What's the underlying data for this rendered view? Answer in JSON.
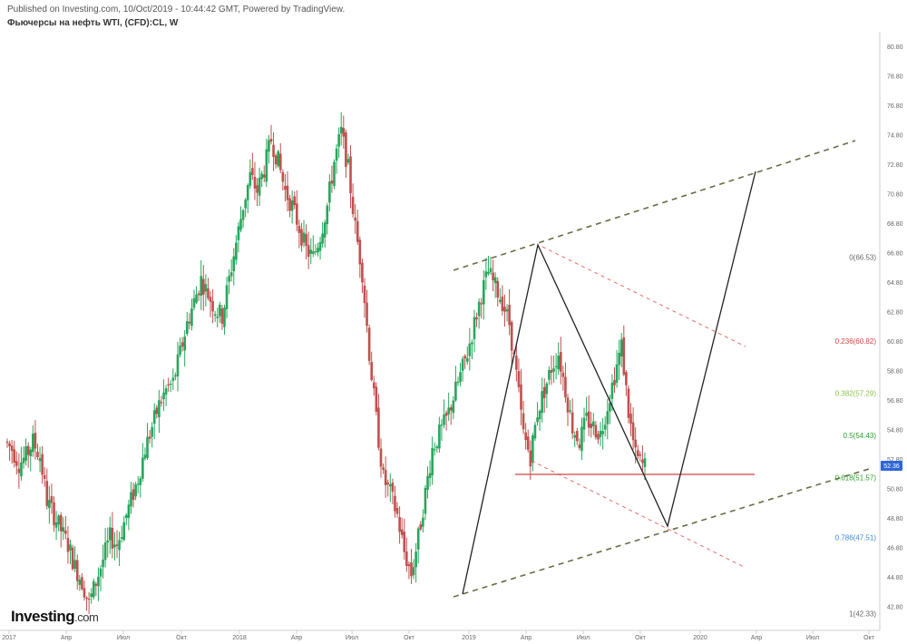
{
  "header": {
    "published": "Published on Investing.com, 10/Oct/2019 - 10:44:42 GMT, Powered by TradingView.",
    "title": "Фьючерсы на нефть WTI, (CFD):CL, W"
  },
  "logo": {
    "text": "Investing",
    "suffix": ".com"
  },
  "current_price": "52.36",
  "colors": {
    "up": "#26a65b",
    "down": "#c0504d",
    "fib_red": "#d04545",
    "fib_green_light": "#8bc34a",
    "fib_green": "#2ca02c",
    "fib_blue": "#3a8ad6",
    "channel": "#6b6b45"
  },
  "chart_data": {
    "type": "candlestick",
    "title": "Фьючерсы на нефть WTI, (CFD):CL, W",
    "timeframe": "W",
    "ylim": [
      41.5,
      81.5
    ],
    "y_ticks": [
      42.8,
      44.8,
      46.8,
      48.8,
      50.8,
      52.8,
      54.8,
      56.8,
      58.8,
      60.8,
      62.8,
      64.8,
      66.8,
      68.8,
      70.8,
      72.8,
      74.8,
      76.8,
      78.8,
      80.8
    ],
    "y_tick_labels": [
      "42.80",
      "44.80",
      "46.80",
      "48.80",
      "50.80",
      "52.80",
      "54.80",
      "56.80",
      "58.80",
      "60.80",
      "62.80",
      "64.80",
      "66.80",
      "68.80",
      "70.80",
      "72.80",
      "74.80",
      "76.80",
      "78.80",
      "80.80"
    ],
    "x_tick_labels": [
      "2017",
      "Апр",
      "Июл",
      "Окт",
      "2018",
      "Апр",
      "Июл",
      "Окт",
      "2019",
      "Апр",
      "Июл",
      "Окт",
      "2020",
      "Апр",
      "Июл",
      "Окт"
    ],
    "price_path": [
      [
        0,
        54.0
      ],
      [
        3,
        53.5
      ],
      [
        6,
        52.5
      ],
      [
        9,
        53.0
      ],
      [
        12,
        54.0
      ],
      [
        15,
        53.0
      ],
      [
        18,
        50.0
      ],
      [
        21,
        49.0
      ],
      [
        24,
        48.0
      ],
      [
        27,
        47.0
      ],
      [
        30,
        45.5
      ],
      [
        33,
        44.5
      ],
      [
        36,
        43.0
      ],
      [
        39,
        44.5
      ],
      [
        42,
        46.0
      ],
      [
        45,
        47.5
      ],
      [
        48,
        47.0
      ],
      [
        51,
        48.5
      ],
      [
        54,
        50.0
      ],
      [
        57,
        51.5
      ],
      [
        60,
        53.5
      ],
      [
        63,
        55.0
      ],
      [
        66,
        56.5
      ],
      [
        69,
        57.5
      ],
      [
        72,
        58.0
      ],
      [
        75,
        60.0
      ],
      [
        78,
        62.0
      ],
      [
        81,
        63.5
      ],
      [
        84,
        65.0
      ],
      [
        87,
        64.0
      ],
      [
        90,
        63.0
      ],
      [
        93,
        62.5
      ],
      [
        96,
        65.0
      ],
      [
        99,
        67.5
      ],
      [
        102,
        70.0
      ],
      [
        105,
        72.0
      ],
      [
        108,
        71.0
      ],
      [
        111,
        72.5
      ],
      [
        114,
        74.5
      ],
      [
        117,
        73.0
      ],
      [
        120,
        71.0
      ],
      [
        123,
        70.0
      ],
      [
        126,
        68.5
      ],
      [
        129,
        67.0
      ],
      [
        132,
        66.5
      ],
      [
        135,
        68.0
      ],
      [
        138,
        70.0
      ],
      [
        141,
        73.0
      ],
      [
        144,
        75.0
      ],
      [
        147,
        72.5
      ],
      [
        150,
        68.5
      ],
      [
        153,
        65.5
      ],
      [
        156,
        60.0
      ],
      [
        159,
        55.5
      ],
      [
        162,
        51.5
      ],
      [
        165,
        50.5
      ],
      [
        168,
        49.0
      ],
      [
        171,
        46.5
      ],
      [
        174,
        45.0
      ],
      [
        177,
        47.5
      ],
      [
        180,
        50.5
      ],
      [
        183,
        53.5
      ],
      [
        186,
        54.5
      ],
      [
        189,
        55.5
      ],
      [
        192,
        57.0
      ],
      [
        195,
        58.5
      ],
      [
        198,
        60.0
      ],
      [
        201,
        62.0
      ],
      [
        204,
        64.0
      ],
      [
        207,
        65.5
      ],
      [
        210,
        64.5
      ],
      [
        213,
        63.5
      ],
      [
        216,
        62.0
      ],
      [
        219,
        58.5
      ],
      [
        222,
        54.5
      ],
      [
        225,
        53.0
      ],
      [
        228,
        56.0
      ],
      [
        231,
        57.5
      ],
      [
        234,
        59.0
      ],
      [
        237,
        60.0
      ],
      [
        240,
        57.5
      ],
      [
        243,
        55.0
      ],
      [
        246,
        54.0
      ],
      [
        249,
        55.5
      ],
      [
        252,
        55.0
      ],
      [
        255,
        54.5
      ],
      [
        258,
        56.5
      ],
      [
        261,
        58.5
      ],
      [
        264,
        60.5
      ],
      [
        267,
        56.0
      ],
      [
        270,
        53.0
      ],
      [
        273,
        52.4
      ]
    ],
    "fibonacci": [
      {
        "label": "0(66.53)",
        "value": 66.53
      },
      {
        "label": "0.236(60.82)",
        "value": 60.82
      },
      {
        "label": "0.382(57.29)",
        "value": 57.29
      },
      {
        "label": "0.5(54.43)",
        "value": 54.43
      },
      {
        "label": "0.618(51.57)",
        "value": 51.57
      },
      {
        "label": "0.786(47.51)",
        "value": 47.51
      },
      {
        "label": "1(42.33)",
        "value": 42.33
      }
    ]
  }
}
